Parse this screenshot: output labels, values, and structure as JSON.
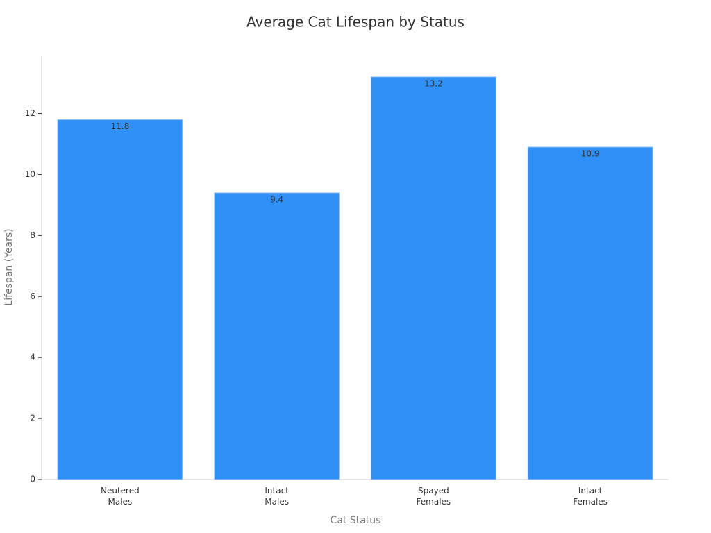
{
  "chart_data": {
    "type": "bar",
    "title": "Average Cat Lifespan by Status",
    "x_label": "Cat Status",
    "y_label": "Lifespan (Years)",
    "categories": [
      "Neutered\nMales",
      "Intact\nMales",
      "Spayed\nFemales",
      "Intact\nFemales"
    ],
    "values": [
      11.8,
      9.4,
      13.2,
      10.9
    ],
    "color": "#2f90f8",
    "ylim": [
      0,
      13.9
    ],
    "yticks": [
      0,
      2,
      4,
      6,
      8,
      10,
      12
    ],
    "grid": false
  }
}
